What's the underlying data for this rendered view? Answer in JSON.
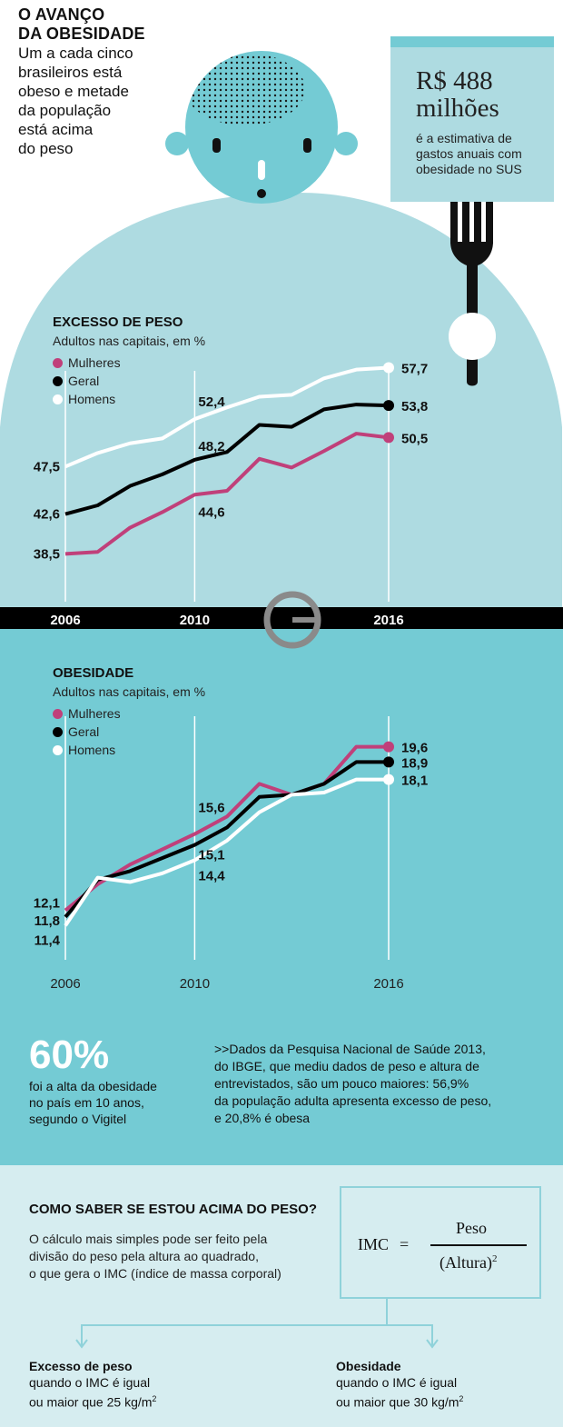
{
  "header": {
    "title_lines": [
      "O AVANÇO",
      "DA OBESIDADE"
    ],
    "subtitle_lines": [
      "Um a cada cinco",
      "brasileiros está",
      "obeso e metade",
      "da população",
      "está acima",
      "do peso"
    ]
  },
  "cost_callout": {
    "value_line1": "R$ 488",
    "value_line2": "milhões",
    "desc_lines": [
      "é a estimativa de",
      "gastos anuais com",
      "obesidade no SUS"
    ]
  },
  "colors": {
    "teal_dark": "#74cbd4",
    "teal_light": "#aedbe1",
    "teal_pale": "#d6edf0",
    "mulheres": "#c0407a",
    "geral": "#000000",
    "homens": "#ffffff"
  },
  "legend": {
    "mulheres": "Mulheres",
    "geral": "Geral",
    "homens": "Homens"
  },
  "chart_data": [
    {
      "type": "line",
      "title": "EXCESSO DE PESO",
      "subtitle": "Adultos nas capitais, em %",
      "x": [
        2006,
        2007,
        2008,
        2009,
        2010,
        2011,
        2012,
        2013,
        2014,
        2015,
        2016
      ],
      "x_tick_labels": [
        "2006",
        "2010",
        "2016"
      ],
      "ylim": [
        30,
        60
      ],
      "series": [
        {
          "name": "Mulheres",
          "color": "#c0407a",
          "values": [
            38.5,
            38.7,
            41.2,
            42.8,
            44.6,
            45.0,
            48.3,
            47.4,
            49.1,
            50.9,
            50.5
          ]
        },
        {
          "name": "Geral",
          "color": "#000000",
          "values": [
            42.6,
            43.5,
            45.5,
            46.7,
            48.2,
            49.0,
            51.8,
            51.6,
            53.4,
            53.9,
            53.8
          ]
        },
        {
          "name": "Homens",
          "color": "#ffffff",
          "values": [
            47.5,
            48.9,
            49.9,
            50.4,
            52.4,
            53.6,
            54.7,
            54.9,
            56.6,
            57.5,
            57.7
          ]
        }
      ],
      "labels": [
        {
          "series": "Homens",
          "year": 2006,
          "text": "47,5"
        },
        {
          "series": "Geral",
          "year": 2006,
          "text": "42,6"
        },
        {
          "series": "Mulheres",
          "year": 2006,
          "text": "38,5"
        },
        {
          "series": "Homens",
          "year": 2010,
          "text": "52,4"
        },
        {
          "series": "Geral",
          "year": 2010,
          "text": "48,2"
        },
        {
          "series": "Mulheres",
          "year": 2010,
          "text": "44,6"
        },
        {
          "series": "Homens",
          "year": 2016,
          "text": "57,7"
        },
        {
          "series": "Geral",
          "year": 2016,
          "text": "53,8"
        },
        {
          "series": "Mulheres",
          "year": 2016,
          "text": "50,5"
        }
      ]
    },
    {
      "type": "line",
      "title": "OBESIDADE",
      "subtitle": "Adultos nas capitais, em %",
      "x": [
        2006,
        2007,
        2008,
        2009,
        2010,
        2011,
        2012,
        2013,
        2014,
        2015,
        2016
      ],
      "x_tick_labels": [
        "2006",
        "2010",
        "2016"
      ],
      "ylim": [
        9,
        22
      ],
      "series": [
        {
          "name": "Mulheres",
          "color": "#c0407a",
          "values": [
            12.1,
            13.3,
            14.2,
            14.9,
            15.6,
            16.4,
            17.9,
            17.4,
            17.9,
            19.6,
            19.6
          ]
        },
        {
          "name": "Geral",
          "color": "#000000",
          "values": [
            11.8,
            13.5,
            13.9,
            14.5,
            15.1,
            15.9,
            17.3,
            17.4,
            17.9,
            18.9,
            18.9
          ]
        },
        {
          "name": "Homens",
          "color": "#ffffff",
          "values": [
            11.4,
            13.6,
            13.4,
            13.8,
            14.4,
            15.3,
            16.6,
            17.4,
            17.5,
            18.1,
            18.1
          ]
        }
      ],
      "labels": [
        {
          "series": "Mulheres",
          "year": 2006,
          "text": "12,1"
        },
        {
          "series": "Geral",
          "year": 2006,
          "text": "11,8"
        },
        {
          "series": "Homens",
          "year": 2006,
          "text": "11,4"
        },
        {
          "series": "Mulheres",
          "year": 2010,
          "text": "15,6"
        },
        {
          "series": "Geral",
          "year": 2010,
          "text": "15,1"
        },
        {
          "series": "Homens",
          "year": 2010,
          "text": "14,4"
        },
        {
          "series": "Mulheres",
          "year": 2016,
          "text": "19,6"
        },
        {
          "series": "Geral",
          "year": 2016,
          "text": "18,9"
        },
        {
          "series": "Homens",
          "year": 2016,
          "text": "18,1"
        }
      ]
    }
  ],
  "stat": {
    "value": "60%",
    "desc_lines": [
      "foi a alta da obesidade",
      "no país em 10 anos,",
      "segundo o Vigitel"
    ]
  },
  "note": {
    "lines": [
      ">>Dados da Pesquisa Nacional de Saúde 2013,",
      "do IBGE, que mediu dados de peso e altura de",
      "entrevistados, são um pouco maiores: 56,9%",
      "da população adulta apresenta excesso de peso,",
      "e 20,8% é obesa"
    ]
  },
  "imc": {
    "heading": "COMO SABER SE ESTOU ACIMA DO PESO?",
    "desc_lines": [
      "O cálculo mais simples pode ser feito pela",
      "divisão do peso pela altura ao quadrado,",
      "o que gera o IMC (índice de massa corporal)"
    ],
    "formula_lhs": "IMC",
    "formula_eq": "=",
    "numerator": "Peso",
    "denominator": "(Altura)",
    "denominator_exp": "2",
    "classes": [
      {
        "label": "Excesso de peso",
        "line1": "quando o IMC é igual",
        "line2": "ou maior que 25 kg/m",
        "exp": "2"
      },
      {
        "label": "Obesidade",
        "line1": "quando o IMC é igual",
        "line2": "ou maior que 30 kg/m",
        "exp": "2"
      }
    ]
  }
}
